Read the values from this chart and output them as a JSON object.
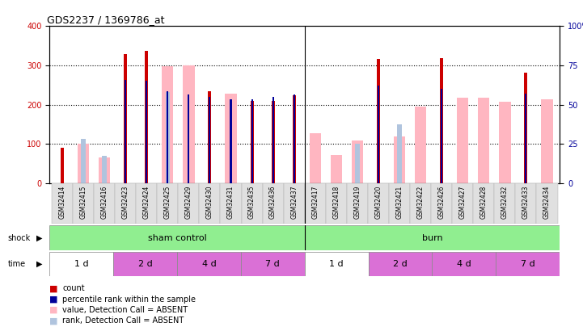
{
  "title": "GDS2237 / 1369786_at",
  "samples": [
    "GSM32414",
    "GSM32415",
    "GSM32416",
    "GSM32423",
    "GSM32424",
    "GSM32425",
    "GSM32429",
    "GSM32430",
    "GSM32431",
    "GSM32435",
    "GSM32436",
    "GSM32437",
    "GSM32417",
    "GSM32418",
    "GSM32419",
    "GSM32420",
    "GSM32421",
    "GSM32422",
    "GSM32426",
    "GSM32427",
    "GSM32428",
    "GSM32432",
    "GSM32433",
    "GSM32434"
  ],
  "count": [
    90,
    null,
    null,
    328,
    338,
    null,
    null,
    234,
    null,
    210,
    210,
    223,
    null,
    null,
    null,
    317,
    null,
    null,
    319,
    null,
    null,
    null,
    282,
    null
  ],
  "percentile": [
    null,
    null,
    null,
    263,
    260,
    235,
    225,
    220,
    213,
    213,
    220,
    225,
    null,
    null,
    null,
    248,
    null,
    null,
    240,
    null,
    null,
    null,
    228,
    null
  ],
  "absent_value": [
    null,
    100,
    65,
    null,
    null,
    298,
    300,
    null,
    228,
    null,
    null,
    null,
    128,
    72,
    108,
    null,
    118,
    195,
    null,
    218,
    218,
    208,
    null,
    213
  ],
  "absent_rank": [
    null,
    113,
    70,
    null,
    null,
    232,
    null,
    null,
    null,
    null,
    null,
    null,
    null,
    null,
    100,
    null,
    150,
    null,
    null,
    null,
    null,
    null,
    null,
    null
  ],
  "count_color": "#CC0000",
  "percentile_color": "#000099",
  "absent_value_color": "#FFB6C1",
  "absent_rank_color": "#B0C4DE",
  "ylim": [
    0,
    400
  ],
  "yticks": [
    0,
    100,
    200,
    300,
    400
  ],
  "shock_groups": [
    {
      "label": "sham control",
      "start": 0,
      "end": 12,
      "color": "#90EE90"
    },
    {
      "label": "burn",
      "start": 12,
      "end": 24,
      "color": "#90EE90"
    }
  ],
  "time_groups": [
    {
      "label": "1 d",
      "start": 0,
      "end": 3,
      "color": "#ffffff"
    },
    {
      "label": "2 d",
      "start": 3,
      "end": 6,
      "color": "#DA70D6"
    },
    {
      "label": "4 d",
      "start": 6,
      "end": 9,
      "color": "#DA70D6"
    },
    {
      "label": "7 d",
      "start": 9,
      "end": 12,
      "color": "#DA70D6"
    },
    {
      "label": "1 d",
      "start": 12,
      "end": 15,
      "color": "#ffffff"
    },
    {
      "label": "2 d",
      "start": 15,
      "end": 18,
      "color": "#DA70D6"
    },
    {
      "label": "4 d",
      "start": 18,
      "end": 21,
      "color": "#DA70D6"
    },
    {
      "label": "7 d",
      "start": 21,
      "end": 24,
      "color": "#DA70D6"
    }
  ]
}
